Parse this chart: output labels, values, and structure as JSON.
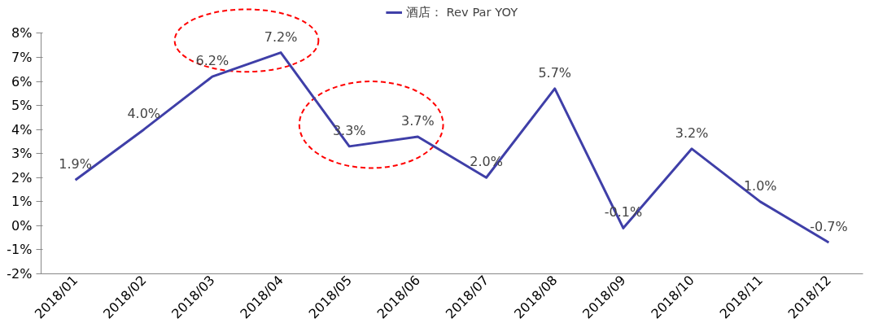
{
  "chart_data": {
    "type": "line",
    "categories": [
      "2018/01",
      "2018/02",
      "2018/03",
      "2018/04",
      "2018/05",
      "2018/06",
      "2018/07",
      "2018/08",
      "2018/09",
      "2018/10",
      "2018/11",
      "2018/12"
    ],
    "series": [
      {
        "name": "酒店： Rev Par YOY",
        "color": "#3f3fa8",
        "values": [
          1.9,
          4.0,
          6.2,
          7.2,
          3.3,
          3.7,
          2.0,
          5.7,
          -0.1,
          3.2,
          1.0,
          -0.7
        ]
      }
    ],
    "ylim": [
      -2,
      8
    ],
    "yticks": [
      {
        "value": -2,
        "label": "-2%"
      },
      {
        "value": -1,
        "label": "-1%"
      },
      {
        "value": 0,
        "label": "0%"
      },
      {
        "value": 1,
        "label": "1%"
      },
      {
        "value": 2,
        "label": "2%"
      },
      {
        "value": 3,
        "label": "3%"
      },
      {
        "value": 4,
        "label": "4%"
      },
      {
        "value": 5,
        "label": "5%"
      },
      {
        "value": 6,
        "label": "6%"
      },
      {
        "value": 7,
        "label": "7%"
      },
      {
        "value": 8,
        "label": "8%"
      }
    ],
    "value_labels": [
      "1.9%",
      "4.0%",
      "6.2%",
      "7.2%",
      "3.3%",
      "3.7%",
      "2.0%",
      "5.7%",
      "-0.1%",
      "3.2%",
      "1.0%",
      "-0.7%"
    ],
    "grid": false,
    "legend": "top",
    "marker": "none",
    "line_style": "solid"
  }
}
